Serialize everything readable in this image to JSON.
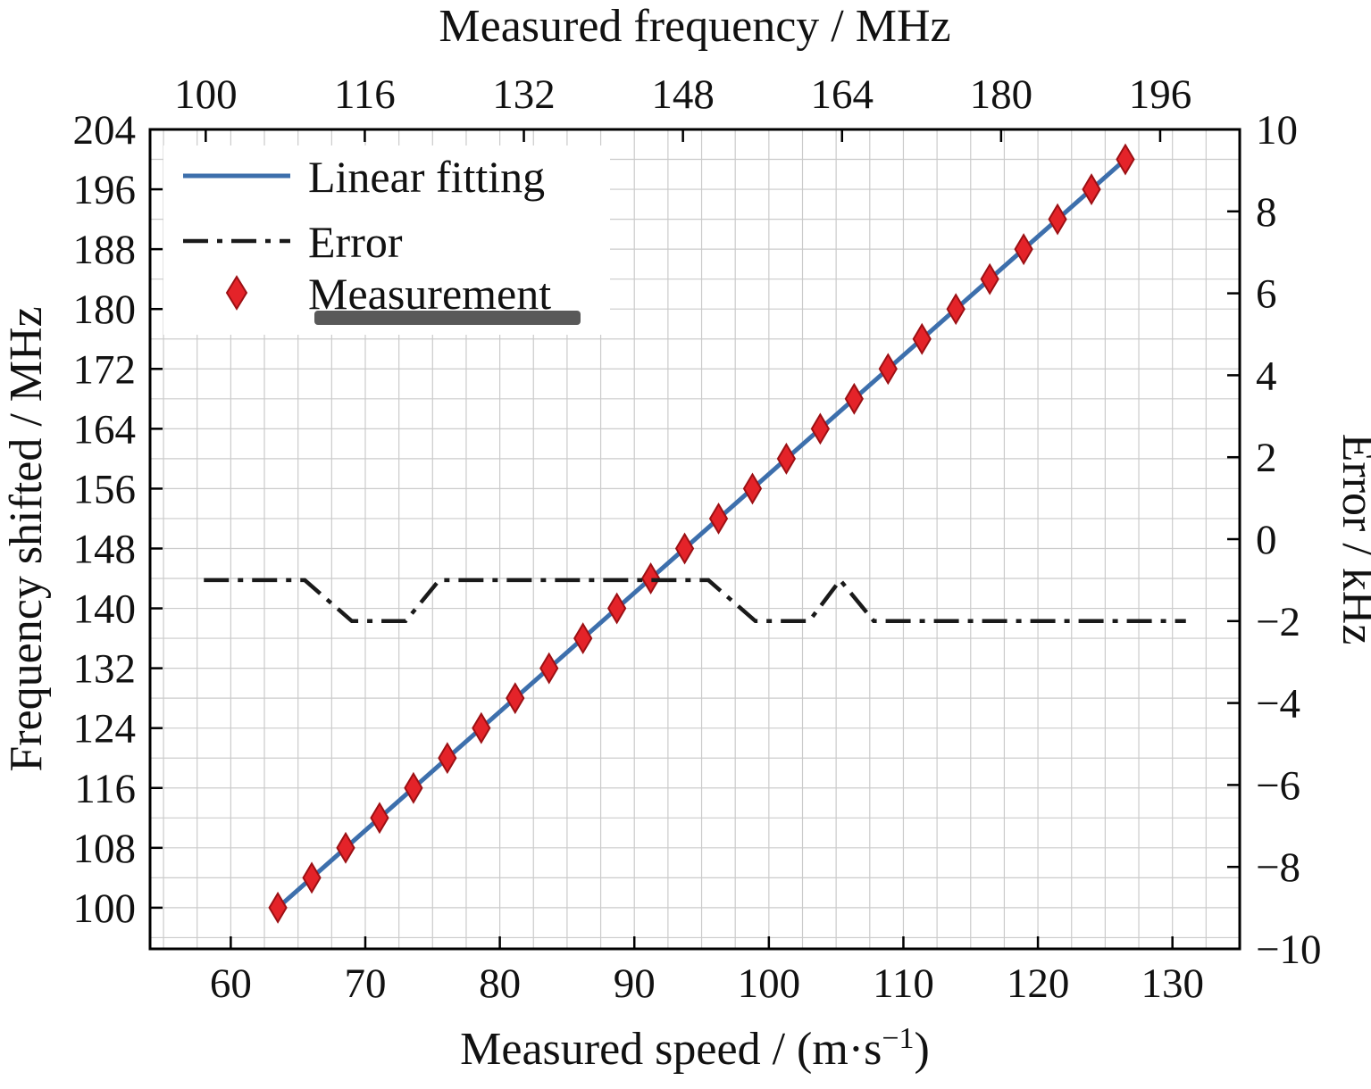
{
  "chart_data": {
    "type": "line+scatter",
    "title": "",
    "axes": {
      "top": {
        "label": "Measured frequency / MHz",
        "range": [
          94.4,
          204.0
        ],
        "ticks": [
          100,
          116,
          132,
          148,
          164,
          180,
          196
        ]
      },
      "bottom": {
        "label": "Measured speed / (m·s⁻¹)",
        "label_parts": {
          "main": "Measured speed / (m·s",
          "sup": "−1",
          "close": ")"
        },
        "range": [
          54.0,
          135.0
        ],
        "ticks": [
          60,
          70,
          80,
          90,
          100,
          110,
          120,
          130
        ]
      },
      "left": {
        "label": "Frequency shifted / MHz",
        "range": [
          94.5,
          204.0
        ],
        "ticks": [
          100,
          108,
          116,
          124,
          132,
          140,
          148,
          156,
          164,
          172,
          180,
          188,
          196,
          204
        ]
      },
      "right": {
        "label": "Error / kHz",
        "range": [
          -10,
          10
        ],
        "ticks": [
          -10,
          -8,
          -6,
          -4,
          -2,
          0,
          2,
          4,
          6,
          8,
          10
        ]
      }
    },
    "grid": {
      "x_step": 2.5,
      "y_step": 4,
      "color": "#cbcbcb",
      "visible": true
    },
    "legend": {
      "position": "top-left",
      "items": [
        {
          "label": "Linear fitting",
          "marker": "line",
          "color": "#3d6fac"
        },
        {
          "label": "Error",
          "marker": "dash-dot-line",
          "color": "#1a1a1a"
        },
        {
          "label": "Measurement",
          "marker": "diamond",
          "color": "#e42329"
        }
      ]
    },
    "series": [
      {
        "name": "Linear fitting",
        "type": "line",
        "axis": "left",
        "color": "#3d6fac",
        "x": [
          63.5,
          126.5
        ],
        "y": [
          100,
          200
        ]
      },
      {
        "name": "Measurement",
        "type": "scatter",
        "axis": "left",
        "marker": "diamond",
        "color": "#e42329",
        "edge_color": "#9c1014",
        "x": [
          63.5,
          66.02,
          68.54,
          71.06,
          73.58,
          76.1,
          78.62,
          81.14,
          83.66,
          86.18,
          88.7,
          91.22,
          93.74,
          96.26,
          98.78,
          101.3,
          103.82,
          106.34,
          108.86,
          111.38,
          113.9,
          116.42,
          118.94,
          121.46,
          123.98,
          126.5
        ],
        "y": [
          100,
          104,
          108,
          112,
          116,
          120,
          124,
          128,
          132,
          136,
          140,
          144,
          148,
          152,
          156,
          160,
          164,
          168,
          172,
          176,
          180,
          184,
          188,
          192,
          196,
          200
        ]
      },
      {
        "name": "Error",
        "type": "line",
        "style": "dash-dot",
        "axis": "right",
        "color": "#1a1a1a",
        "x": [
          58,
          65.5,
          69,
          73,
          75.5,
          95.5,
          99,
          103,
          105.3,
          107.8,
          131
        ],
        "y": [
          -1,
          -1,
          -2,
          -2,
          -1,
          -1,
          -2,
          -2,
          -1,
          -2,
          -2
        ]
      }
    ]
  }
}
